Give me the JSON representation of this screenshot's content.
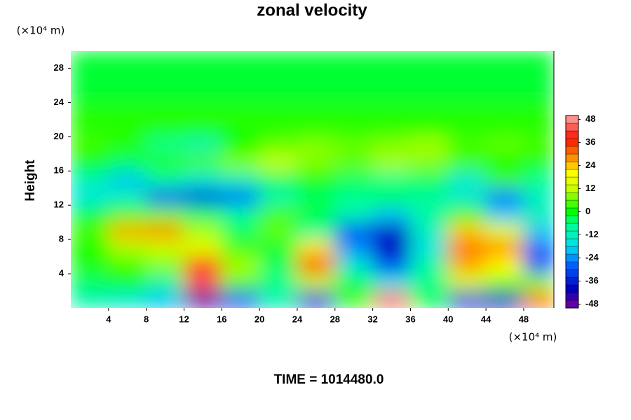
{
  "chart_data": {
    "type": "contour",
    "title": "zonal velocity",
    "ylabel": "Height",
    "yunit": "(×10⁴ m)",
    "xunit": "(×10⁴ m)",
    "annotation": "TIME = 1014480.0",
    "x": [
      2,
      6,
      10,
      14,
      18,
      22,
      26,
      30,
      34,
      38,
      42,
      46,
      50
    ],
    "y": [
      1,
      3,
      5,
      7,
      9,
      11,
      13,
      15,
      17,
      19,
      21,
      23,
      25,
      27,
      29
    ],
    "z": [
      [
        -10,
        -14,
        -20,
        -48,
        -30,
        -10,
        -36,
        4,
        46,
        -4,
        -36,
        -40,
        30
      ],
      [
        -4,
        0,
        -8,
        44,
        6,
        -6,
        12,
        -4,
        -16,
        -6,
        14,
        8,
        8
      ],
      [
        2,
        4,
        8,
        36,
        10,
        -4,
        34,
        -14,
        -30,
        -8,
        26,
        20,
        -30
      ],
      [
        0,
        10,
        12,
        16,
        4,
        -2,
        22,
        -24,
        -40,
        -16,
        30,
        28,
        -28
      ],
      [
        4,
        26,
        28,
        10,
        -4,
        6,
        -8,
        -30,
        -38,
        -12,
        24,
        16,
        -20
      ],
      [
        -2,
        4,
        6,
        -4,
        -8,
        4,
        -2,
        -10,
        -20,
        -8,
        4,
        -20,
        -10
      ],
      [
        -16,
        -12,
        -30,
        -34,
        -28,
        -10,
        -4,
        -6,
        -4,
        -8,
        -14,
        -26,
        -12
      ],
      [
        -10,
        -20,
        -8,
        -14,
        -10,
        -4,
        0,
        -4,
        -6,
        -4,
        -14,
        4,
        -6
      ],
      [
        0,
        -4,
        2,
        4,
        8,
        12,
        8,
        6,
        10,
        8,
        4,
        0,
        2
      ],
      [
        4,
        2,
        -6,
        -10,
        0,
        6,
        8,
        6,
        8,
        10,
        4,
        6,
        4
      ],
      [
        2,
        2,
        2,
        2,
        2,
        2,
        2,
        2,
        2,
        2,
        2,
        2,
        2
      ],
      [
        2,
        2,
        2,
        2,
        2,
        2,
        2,
        2,
        2,
        2,
        2,
        2,
        2
      ],
      [
        -2,
        -2,
        -2,
        -2,
        -2,
        -2,
        -2,
        -2,
        -2,
        -2,
        -2,
        -2,
        -2
      ],
      [
        -2,
        -2,
        -2,
        -2,
        -2,
        -2,
        -2,
        -2,
        -2,
        -2,
        -2,
        -2,
        -2
      ],
      [
        -2,
        -2,
        -2,
        -2,
        -2,
        -2,
        -2,
        -2,
        -2,
        -2,
        -2,
        -2,
        -2
      ]
    ],
    "xlim": [
      0,
      51.2
    ],
    "ylim": [
      0,
      30
    ],
    "xticks": [
      4,
      8,
      12,
      16,
      20,
      24,
      28,
      32,
      36,
      40,
      44,
      48
    ],
    "yticks": [
      4,
      8,
      12,
      16,
      20,
      24,
      28
    ],
    "clim": [
      -50,
      50
    ],
    "cticks": [
      48,
      36,
      24,
      12,
      0,
      -12,
      -24,
      -36,
      -48
    ],
    "colorscale": [
      [
        -50,
        "#7a00a0"
      ],
      [
        -40,
        "#0000c0"
      ],
      [
        -28,
        "#0060ff"
      ],
      [
        -18,
        "#00e0f0"
      ],
      [
        -6,
        "#00ff90"
      ],
      [
        0,
        "#00ff00"
      ],
      [
        12,
        "#c8ff00"
      ],
      [
        20,
        "#ffff00"
      ],
      [
        28,
        "#ff9000"
      ],
      [
        38,
        "#ff1000"
      ],
      [
        50,
        "#ffa8a8"
      ]
    ]
  }
}
